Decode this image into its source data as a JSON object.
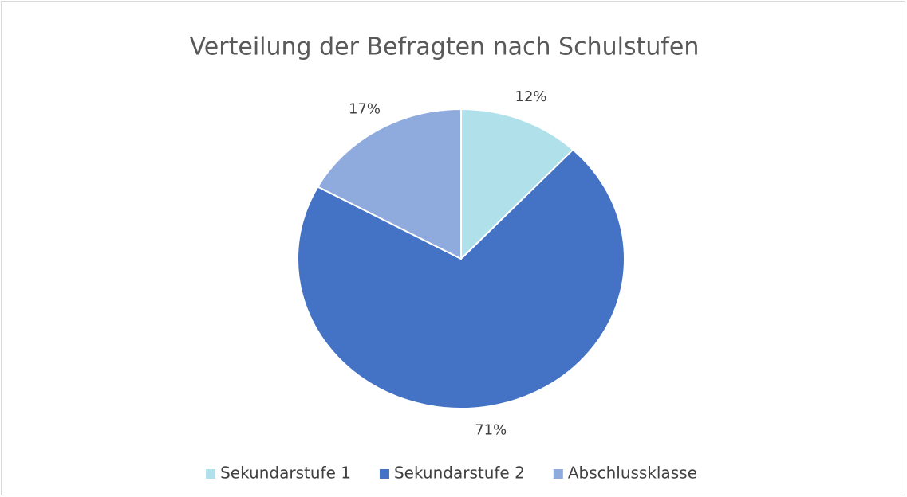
{
  "chart_data": {
    "type": "pie",
    "title": "Verteilung der Befragten nach Schulstufen",
    "categories": [
      "Sekundarstufe 1",
      "Sekundarstufe 2",
      "Abschlussklasse"
    ],
    "values": [
      12,
      71,
      17
    ],
    "value_labels": [
      "12%",
      "71%",
      "17%"
    ],
    "colors": [
      "#b0e1ea",
      "#4472c4",
      "#8faadc"
    ],
    "legend": "bottom"
  }
}
